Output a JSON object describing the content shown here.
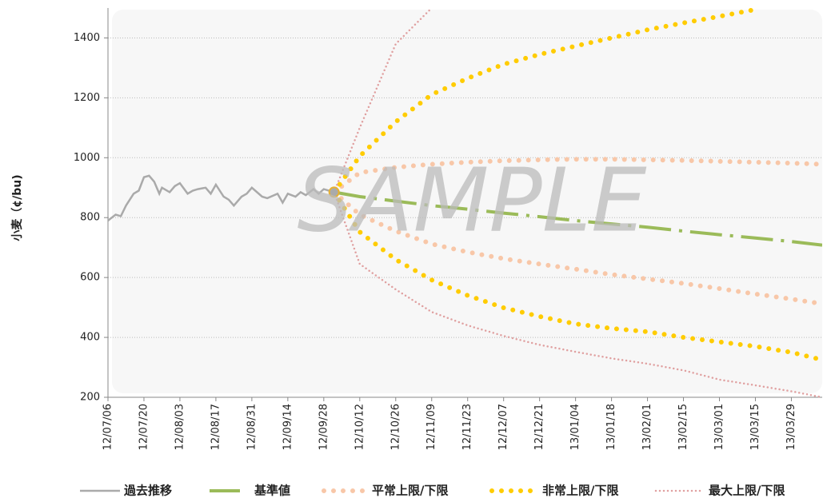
{
  "chart_data": {
    "type": "line",
    "y_label": "小麦（¢/bu)",
    "watermark": "SAMPLE",
    "xlim": [
      "2012-07-06",
      "2013-04-10"
    ],
    "ylim": [
      200,
      1500
    ],
    "yticks": [
      200,
      400,
      600,
      800,
      1000,
      1200,
      1400
    ],
    "grid": true,
    "xticks": [
      {
        "value": "2012-07-06",
        "label": "12/07/06"
      },
      {
        "value": "2012-07-20",
        "label": "12/07/20"
      },
      {
        "value": "2012-08-03",
        "label": "12/08/03"
      },
      {
        "value": "2012-08-17",
        "label": "12/08/17"
      },
      {
        "value": "2012-08-31",
        "label": "12/08/31"
      },
      {
        "value": "2012-09-14",
        "label": "12/09/14"
      },
      {
        "value": "2012-09-28",
        "label": "12/09/28"
      },
      {
        "value": "2012-10-12",
        "label": "12/10/12"
      },
      {
        "value": "2012-10-26",
        "label": "12/10/26"
      },
      {
        "value": "2012-11-09",
        "label": "12/11/09"
      },
      {
        "value": "2012-11-23",
        "label": "12/11/23"
      },
      {
        "value": "2012-12-07",
        "label": "12/12/07"
      },
      {
        "value": "2012-12-21",
        "label": "12/12/21"
      },
      {
        "value": "2013-01-04",
        "label": "13/01/04"
      },
      {
        "value": "2013-01-18",
        "label": "13/01/18"
      },
      {
        "value": "2013-02-01",
        "label": "13/02/01"
      },
      {
        "value": "2013-02-15",
        "label": "13/02/15"
      },
      {
        "value": "2013-03-01",
        "label": "13/03/01"
      },
      {
        "value": "2013-03-15",
        "label": "13/03/15"
      },
      {
        "value": "2013-03-29",
        "label": "13/03/29"
      }
    ],
    "series": [
      {
        "name": "過去推移",
        "color": "#aaaaaa",
        "style": "solid",
        "x": [
          "2012-07-06",
          "2012-07-09",
          "2012-07-11",
          "2012-07-13",
          "2012-07-16",
          "2012-07-18",
          "2012-07-20",
          "2012-07-22",
          "2012-07-24",
          "2012-07-26",
          "2012-07-27",
          "2012-07-30",
          "2012-08-01",
          "2012-08-03",
          "2012-08-06",
          "2012-08-08",
          "2012-08-10",
          "2012-08-13",
          "2012-08-15",
          "2012-08-17",
          "2012-08-20",
          "2012-08-22",
          "2012-08-24",
          "2012-08-27",
          "2012-08-29",
          "2012-08-31",
          "2012-09-04",
          "2012-09-06",
          "2012-09-10",
          "2012-09-12",
          "2012-09-14",
          "2012-09-17",
          "2012-09-19",
          "2012-09-21",
          "2012-09-24",
          "2012-09-26",
          "2012-09-28",
          "2012-10-02"
        ],
        "values": [
          790,
          810,
          805,
          840,
          880,
          890,
          935,
          940,
          920,
          880,
          900,
          885,
          905,
          915,
          880,
          890,
          895,
          900,
          880,
          910,
          870,
          860,
          840,
          870,
          880,
          900,
          870,
          865,
          880,
          850,
          880,
          870,
          885,
          875,
          895,
          880,
          895,
          885
        ]
      },
      {
        "name": "基準値",
        "color": "#9bbb59",
        "style": "dashdot",
        "x": [
          "2012-10-02",
          "2012-10-12",
          "2012-10-26",
          "2012-11-09",
          "2012-11-23",
          "2012-12-07",
          "2012-12-21",
          "2013-01-04",
          "2013-01-18",
          "2013-02-01",
          "2013-02-15",
          "2013-03-01",
          "2013-03-15",
          "2013-03-29",
          "2013-04-10"
        ],
        "values": [
          885,
          870,
          855,
          840,
          828,
          815,
          803,
          790,
          779,
          768,
          755,
          743,
          732,
          720,
          708
        ]
      },
      {
        "name": "平常上限/下限",
        "color": "#f8c7a8",
        "style": "bigdot",
        "x": [
          "2012-10-02",
          "2012-10-12",
          "2012-10-26",
          "2012-11-09",
          "2012-11-23",
          "2012-12-07",
          "2012-12-21",
          "2013-01-04",
          "2013-01-18",
          "2013-02-01",
          "2013-02-15",
          "2013-03-01",
          "2013-03-15",
          "2013-03-29",
          "2013-04-10"
        ],
        "values": [
          885,
          950,
          968,
          978,
          985,
          990,
          993,
          995,
          995,
          993,
          991,
          988,
          985,
          982,
          978
        ],
        "lower": [
          885,
          810,
          755,
          712,
          685,
          663,
          645,
          628,
          610,
          595,
          580,
          563,
          545,
          528,
          512
        ]
      },
      {
        "name": "非常上限/下限",
        "color": "#ffcc00",
        "style": "bigdot",
        "x": [
          "2012-10-02",
          "2012-10-12",
          "2012-10-26",
          "2012-11-09",
          "2012-11-23",
          "2012-12-07",
          "2012-12-21",
          "2013-01-04",
          "2013-01-18",
          "2013-02-01",
          "2013-02-15",
          "2013-03-01",
          "2013-03-15",
          "2013-03-29",
          "2013-04-10"
        ],
        "values": [
          885,
          1005,
          1120,
          1211,
          1265,
          1312,
          1345,
          1373,
          1400,
          1427,
          1450,
          1472,
          1495,
          null,
          null
        ],
        "lower": [
          885,
          752,
          660,
          592,
          540,
          499,
          470,
          445,
          430,
          419,
          400,
          385,
          370,
          350,
          325
        ]
      },
      {
        "name": "最大上限/下限",
        "color": "#e0a0a0",
        "style": "smalldot",
        "x": [
          "2012-10-02",
          "2012-10-12",
          "2012-10-26",
          "2012-11-09",
          "2012-11-23",
          "2012-12-07",
          "2012-12-21",
          "2013-01-04",
          "2013-01-18",
          "2013-02-01",
          "2013-02-15",
          "2013-03-01",
          "2013-03-15",
          "2013-03-29",
          "2013-04-10"
        ],
        "values": [
          885,
          1100,
          1380,
          1500,
          null,
          null,
          null,
          null,
          null,
          null,
          null,
          null,
          null,
          null,
          null
        ],
        "lower": [
          885,
          645,
          560,
          485,
          440,
          405,
          375,
          352,
          330,
          312,
          290,
          259,
          240,
          220,
          200
        ]
      }
    ]
  }
}
